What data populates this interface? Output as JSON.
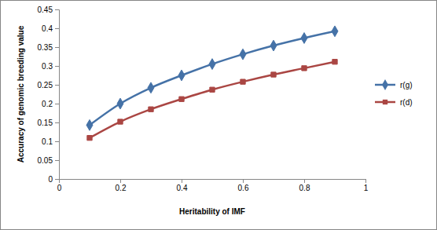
{
  "chart_data": {
    "type": "line",
    "x_label": "Heritability of IMF",
    "y_label": "Accuracy of genomic breeding value",
    "x": [
      0.1,
      0.2,
      0.3,
      0.4,
      0.5,
      0.6,
      0.7,
      0.8,
      0.9
    ],
    "series": [
      {
        "name": "r(g)",
        "color": "#4572a7",
        "marker": "diamond",
        "line_style": "solid",
        "values": [
          0.143,
          0.2,
          0.242,
          0.275,
          0.305,
          0.331,
          0.354,
          0.374,
          0.392
        ]
      },
      {
        "name": "r(d)",
        "color": "#aa4643",
        "marker": "square",
        "line_style": "solid",
        "values": [
          0.109,
          0.152,
          0.185,
          0.212,
          0.237,
          0.258,
          0.277,
          0.294,
          0.311
        ]
      }
    ],
    "xlim": [
      0,
      1
    ],
    "xticks": [
      0,
      0.2,
      0.4,
      0.6,
      0.8,
      1
    ],
    "ylim": [
      0,
      0.45
    ],
    "yticks": [
      0,
      0.05,
      0.1,
      0.15,
      0.2,
      0.25,
      0.3,
      0.35,
      0.4,
      0.45
    ],
    "grid": false,
    "legend": "right"
  }
}
